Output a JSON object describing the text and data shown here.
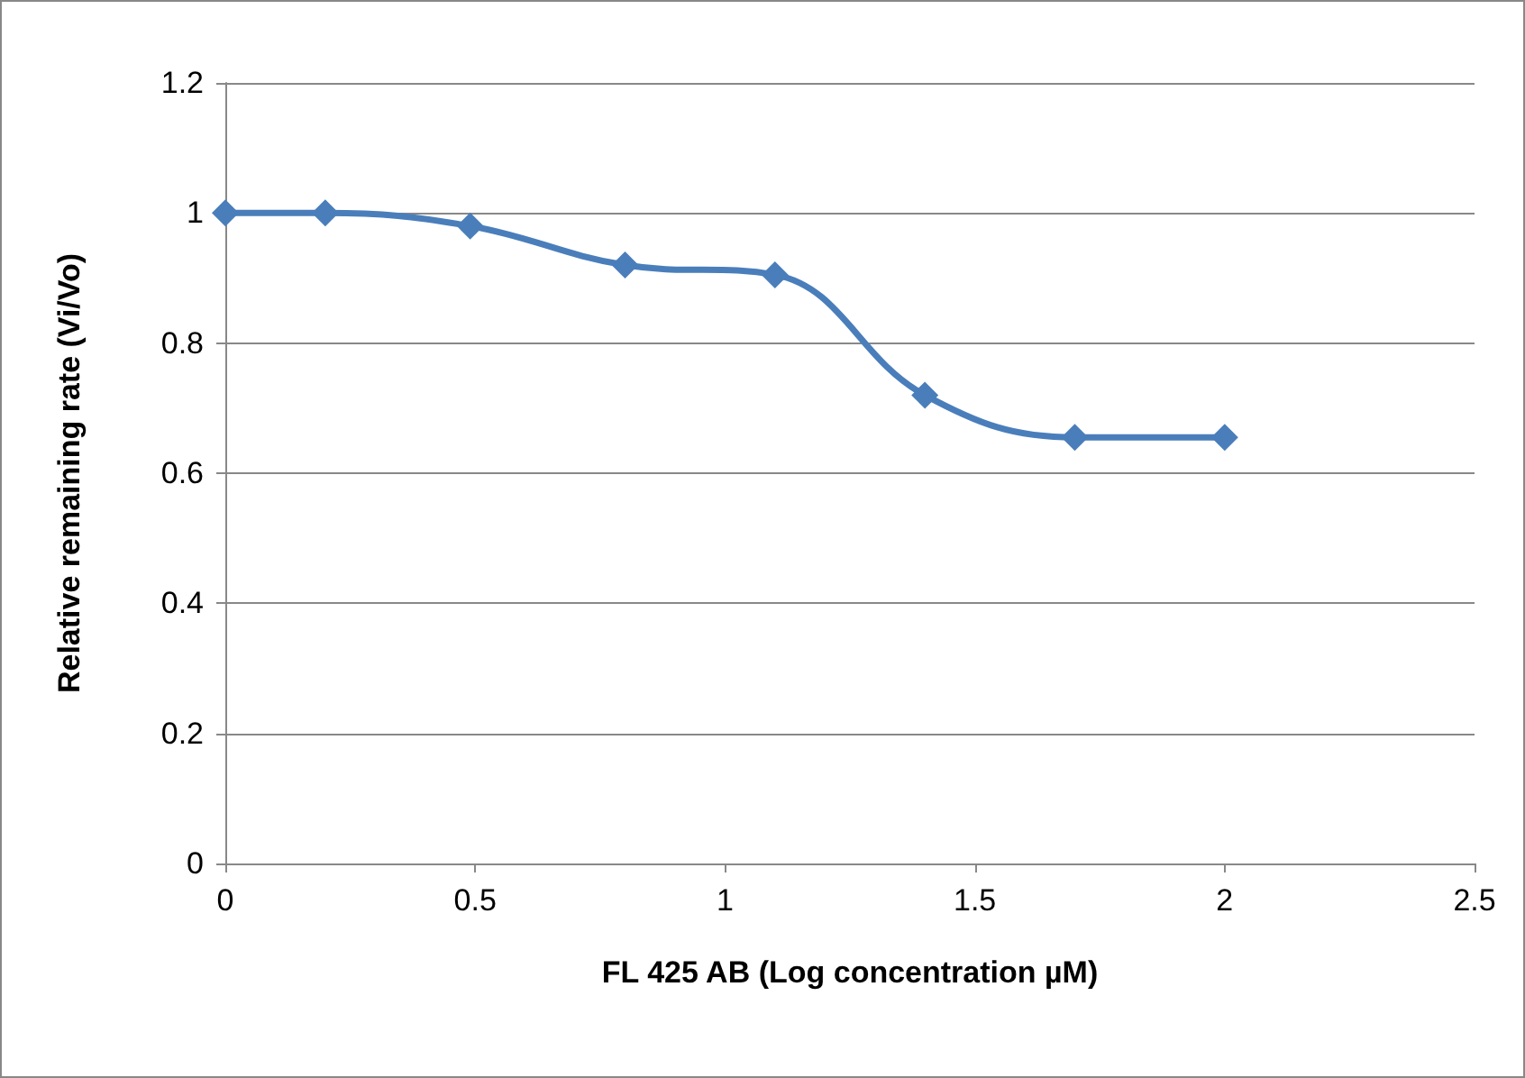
{
  "chart_data": {
    "type": "line",
    "xlabel": "FL 425 AB (Log concentration µM)",
    "ylabel": "Relative remaining rate (Vi/Vo)",
    "x": [
      0,
      0.2,
      0.49,
      0.8,
      1.1,
      1.4,
      1.7,
      2.0
    ],
    "series": [
      {
        "color": "#4a7ebb",
        "values": [
          1.0,
          1.0,
          0.98,
          0.92,
          0.905,
          0.72,
          0.655,
          0.655
        ]
      }
    ],
    "xlim": [
      0,
      2.5
    ],
    "xticks": [
      0,
      0.5,
      1,
      1.5,
      2,
      2.5
    ],
    "ylim": [
      0,
      1.2
    ],
    "yticks": [
      0,
      0.2,
      0.4,
      0.6,
      0.8,
      1,
      1.2
    ],
    "grid": "y",
    "marker": "diamond",
    "line_style": "solid"
  }
}
